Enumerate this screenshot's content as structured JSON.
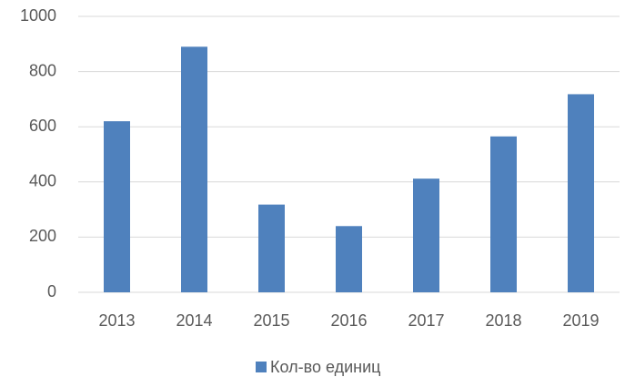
{
  "chart_data": {
    "type": "bar",
    "categories": [
      "2013",
      "2014",
      "2015",
      "2016",
      "2017",
      "2018",
      "2019"
    ],
    "series": [
      {
        "name": "Кол-во единиц",
        "color": "#4f81bd",
        "values": [
          620,
          890,
          318,
          240,
          412,
          565,
          718
        ]
      }
    ],
    "ylim": [
      0,
      1000
    ],
    "yticks": [
      0,
      200,
      400,
      600,
      800,
      1000
    ],
    "grid": true,
    "legend": "bottom"
  }
}
